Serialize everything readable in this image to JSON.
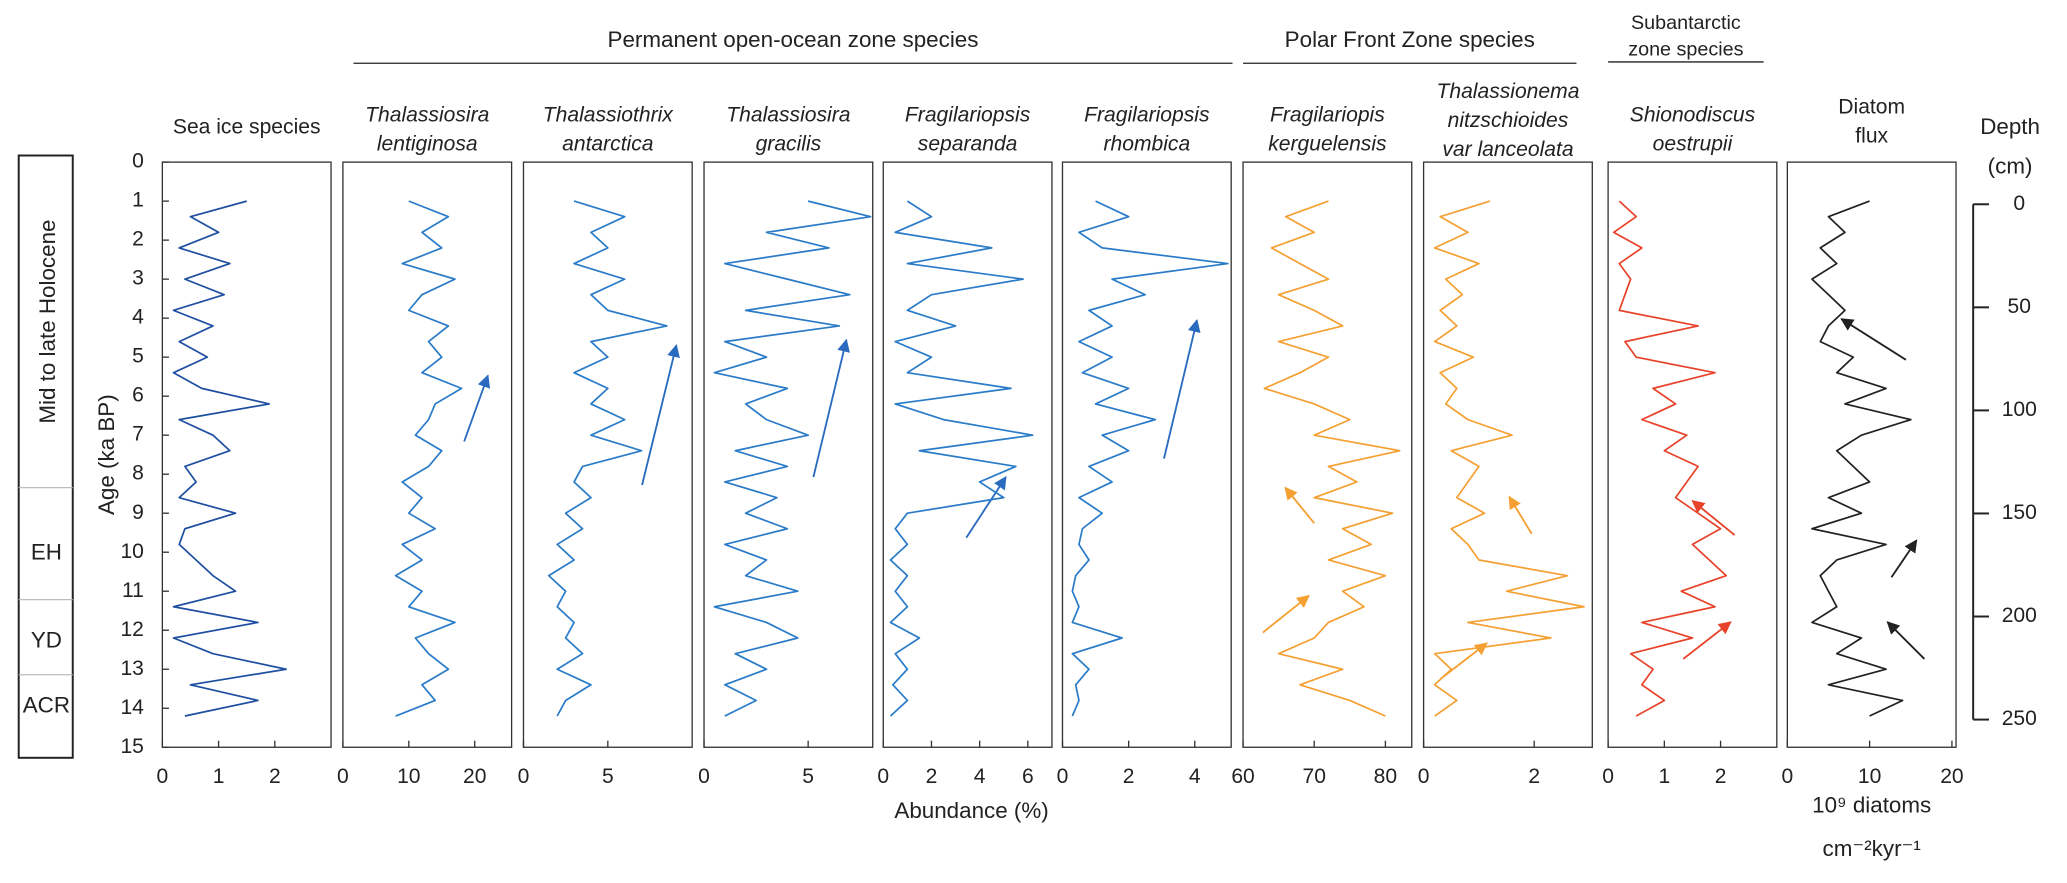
{
  "figure": {
    "groups": [
      [
        "Permanent open-ocean zone species"
      ],
      [
        "Polar Front Zone species"
      ],
      [
        "Subantarctic",
        "zone species"
      ]
    ],
    "x_label": "Abundance (%)",
    "y_label": "Age (ka BP)",
    "periods": [
      "Mid to late Holocene",
      "EH",
      "YD",
      "ACR"
    ],
    "depth_axis": {
      "label": [
        "Depth",
        "(cm)"
      ],
      "lim": [
        0,
        250
      ],
      "ticks": [
        0,
        50,
        100,
        150,
        200,
        250
      ]
    }
  },
  "chart_data": [
    {
      "type": "line",
      "title": [
        "Sea ice species"
      ],
      "italic": false,
      "color": "#1f4fa0",
      "xlim": [
        0,
        3
      ],
      "xticks": [
        0,
        1,
        2
      ],
      "ylim": [
        0,
        15
      ],
      "yticks": [
        0,
        1,
        2,
        3,
        4,
        5,
        6,
        7,
        8,
        9,
        10,
        11,
        12,
        13,
        14,
        15
      ],
      "y": [
        1.0,
        1.4,
        1.8,
        2.2,
        2.6,
        3.0,
        3.4,
        3.8,
        4.2,
        4.6,
        5.0,
        5.4,
        5.8,
        6.2,
        6.6,
        7.0,
        7.4,
        7.8,
        8.2,
        8.6,
        9.0,
        9.4,
        9.8,
        10.2,
        10.6,
        11.0,
        11.4,
        11.8,
        12.2,
        12.6,
        13.0,
        13.4,
        13.8,
        14.2
      ],
      "values": [
        1.5,
        0.5,
        1.0,
        0.3,
        1.2,
        0.4,
        1.1,
        0.2,
        0.9,
        0.3,
        0.8,
        0.2,
        0.7,
        1.9,
        0.3,
        0.9,
        1.2,
        0.4,
        0.6,
        0.3,
        1.3,
        0.4,
        0.3,
        0.6,
        0.9,
        1.3,
        0.2,
        1.7,
        0.2,
        0.9,
        2.2,
        0.5,
        1.7,
        0.4
      ]
    },
    {
      "type": "line",
      "title": [
        "Thalassiosira",
        "lentiginosa"
      ],
      "italic": true,
      "color": "#2a7bc8",
      "xlim": [
        0,
        25.6
      ],
      "xticks": [
        0,
        10,
        20
      ],
      "ylim": [
        0,
        15
      ],
      "y": [
        1.0,
        1.4,
        1.8,
        2.2,
        2.6,
        3.0,
        3.4,
        3.8,
        4.2,
        4.6,
        5.0,
        5.4,
        5.8,
        6.2,
        6.6,
        7.0,
        7.4,
        7.8,
        8.2,
        8.6,
        9.0,
        9.4,
        9.8,
        10.2,
        10.6,
        11.0,
        11.4,
        11.8,
        12.2,
        12.6,
        13.0,
        13.4,
        13.8,
        14.2
      ],
      "values": [
        10,
        16,
        12,
        15,
        9,
        17,
        12,
        10,
        16,
        13,
        15,
        12,
        18,
        14,
        13,
        11,
        15,
        13,
        9,
        12,
        10,
        14,
        9,
        12,
        8,
        12,
        10,
        17,
        11,
        13,
        16,
        12,
        14,
        8
      ]
    },
    {
      "type": "line",
      "title": [
        "Thalassiothrix",
        "antarctica"
      ],
      "italic": true,
      "color": "#2a7bc8",
      "xlim": [
        0,
        10
      ],
      "xticks": [
        0,
        5
      ],
      "ylim": [
        0,
        15
      ],
      "y": [
        1.0,
        1.4,
        1.8,
        2.2,
        2.6,
        3.0,
        3.4,
        3.8,
        4.2,
        4.6,
        5.0,
        5.4,
        5.8,
        6.2,
        6.6,
        7.0,
        7.4,
        7.8,
        8.2,
        8.6,
        9.0,
        9.4,
        9.8,
        10.2,
        10.6,
        11.0,
        11.4,
        11.8,
        12.2,
        12.6,
        13.0,
        13.4,
        13.8,
        14.2
      ],
      "values": [
        3,
        6,
        4,
        5,
        3,
        6,
        4,
        5,
        8.5,
        4,
        5,
        3,
        5,
        4,
        6,
        4,
        7,
        3.5,
        3,
        4,
        2.5,
        3.5,
        2,
        3,
        1.5,
        2.5,
        2,
        3,
        2.5,
        3.5,
        2,
        4,
        2.5,
        2
      ]
    },
    {
      "type": "line",
      "title": [
        "Thalassiosira",
        "gracilis"
      ],
      "italic": true,
      "color": "#2a7bc8",
      "xlim": [
        0,
        8.1
      ],
      "xticks": [
        0,
        5
      ],
      "ylim": [
        0,
        15
      ],
      "y": [
        1.0,
        1.4,
        1.8,
        2.2,
        2.6,
        3.0,
        3.4,
        3.8,
        4.2,
        4.6,
        5.0,
        5.4,
        5.8,
        6.2,
        6.6,
        7.0,
        7.4,
        7.8,
        8.2,
        8.6,
        9.0,
        9.4,
        9.8,
        10.2,
        10.6,
        11.0,
        11.4,
        11.8,
        12.2,
        12.6,
        13.0,
        13.4,
        13.8,
        14.2
      ],
      "values": [
        5,
        8,
        3,
        6,
        1,
        4,
        7,
        2,
        6.5,
        1,
        3,
        0.5,
        4,
        2,
        3,
        5,
        1.5,
        4,
        1,
        3.5,
        2,
        4,
        1,
        3,
        2,
        4.5,
        0.5,
        3,
        4.5,
        1.5,
        3,
        1,
        2.5,
        1
      ]
    },
    {
      "type": "line",
      "title": [
        "Fragilariopsis",
        "separanda"
      ],
      "italic": true,
      "color": "#2a7bc8",
      "xlim": [
        0,
        7
      ],
      "xticks": [
        0,
        2,
        4,
        6
      ],
      "ylim": [
        0,
        15
      ],
      "y": [
        1.0,
        1.4,
        1.8,
        2.2,
        2.6,
        3.0,
        3.4,
        3.8,
        4.2,
        4.6,
        5.0,
        5.4,
        5.8,
        6.2,
        6.6,
        7.0,
        7.4,
        7.8,
        8.2,
        8.6,
        9.0,
        9.4,
        9.8,
        10.2,
        10.6,
        11.0,
        11.4,
        11.8,
        12.2,
        12.6,
        13.0,
        13.4,
        13.8,
        14.2
      ],
      "values": [
        1,
        2,
        0.5,
        4.5,
        1,
        5.8,
        2,
        1,
        3,
        0.5,
        2,
        1,
        5.3,
        0.5,
        2.5,
        6.2,
        1.5,
        5.5,
        4,
        5,
        1,
        0.5,
        1,
        0.3,
        1,
        0.5,
        1,
        0.3,
        1.5,
        0.5,
        1,
        0.4,
        1,
        0.3
      ]
    },
    {
      "type": "line",
      "title": [
        "Fragilariopsis",
        "rhombica"
      ],
      "italic": true,
      "color": "#2a7bc8",
      "xlim": [
        0,
        5.1
      ],
      "xticks": [
        0,
        2,
        4
      ],
      "ylim": [
        0,
        15
      ],
      "y": [
        1.0,
        1.4,
        1.8,
        2.2,
        2.6,
        3.0,
        3.4,
        3.8,
        4.2,
        4.6,
        5.0,
        5.4,
        5.8,
        6.2,
        6.6,
        7.0,
        7.4,
        7.8,
        8.2,
        8.6,
        9.0,
        9.4,
        9.8,
        10.2,
        10.6,
        11.0,
        11.4,
        11.8,
        12.2,
        12.6,
        13.0,
        13.4,
        13.8,
        14.2
      ],
      "values": [
        1,
        2,
        0.5,
        1.2,
        5,
        1.5,
        2.5,
        0.8,
        1.5,
        0.5,
        1.5,
        0.6,
        2,
        1,
        2.8,
        1.2,
        2,
        0.8,
        1.5,
        0.5,
        1.2,
        0.6,
        0.5,
        0.8,
        0.4,
        0.3,
        0.5,
        0.3,
        1.8,
        0.3,
        0.8,
        0.4,
        0.5,
        0.3
      ]
    },
    {
      "type": "line",
      "title": [
        "Fragilariopis",
        "kerguelensis"
      ],
      "italic": true,
      "color": "#f5a033",
      "xlim": [
        60,
        83.7
      ],
      "xticks": [
        60,
        70,
        80
      ],
      "ylim": [
        0,
        15
      ],
      "y": [
        1.0,
        1.4,
        1.8,
        2.2,
        2.6,
        3.0,
        3.4,
        3.8,
        4.2,
        4.6,
        5.0,
        5.4,
        5.8,
        6.2,
        6.6,
        7.0,
        7.4,
        7.8,
        8.2,
        8.6,
        9.0,
        9.4,
        9.8,
        10.2,
        10.6,
        11.0,
        11.4,
        11.8,
        12.2,
        12.6,
        13.0,
        13.4,
        13.8,
        14.2
      ],
      "values": [
        72,
        66,
        70,
        64,
        68,
        72,
        65,
        70,
        74,
        65,
        72,
        68,
        63,
        70,
        75,
        70,
        82,
        72,
        76,
        70,
        81,
        74,
        78,
        72,
        80,
        74,
        77,
        72,
        70,
        65,
        74,
        68,
        75,
        80
      ]
    },
    {
      "type": "line",
      "title": [
        "Thalassionema",
        "nitzschioides",
        "var lanceolata"
      ],
      "italic": true,
      "color": "#f5a033",
      "xlim": [
        0,
        3.05
      ],
      "xticks": [
        0,
        2
      ],
      "ylim": [
        0,
        15
      ],
      "y": [
        1.0,
        1.4,
        1.8,
        2.2,
        2.6,
        3.0,
        3.4,
        3.8,
        4.2,
        4.6,
        5.0,
        5.4,
        5.8,
        6.2,
        6.6,
        7.0,
        7.4,
        7.8,
        8.2,
        8.6,
        9.0,
        9.4,
        9.8,
        10.2,
        10.6,
        11.0,
        11.4,
        11.8,
        12.2,
        12.6,
        13.0,
        13.4,
        13.8,
        14.2
      ],
      "values": [
        1.2,
        0.3,
        0.8,
        0.2,
        1.0,
        0.4,
        0.7,
        0.3,
        0.6,
        0.2,
        0.9,
        0.3,
        0.6,
        0.4,
        0.8,
        1.6,
        0.5,
        1.0,
        0.8,
        0.6,
        1.1,
        0.5,
        0.8,
        1.0,
        2.6,
        1.5,
        2.9,
        0.8,
        2.3,
        0.2,
        0.5,
        0.2,
        0.6,
        0.2
      ]
    },
    {
      "type": "line",
      "title": [
        "Shionodiscus",
        "oestrupii"
      ],
      "italic": true,
      "color": "#e8432a",
      "xlim": [
        0,
        3
      ],
      "xticks": [
        0,
        1,
        2
      ],
      "ylim": [
        0,
        15
      ],
      "y": [
        1.0,
        1.4,
        1.8,
        2.2,
        2.6,
        3.0,
        3.4,
        3.8,
        4.2,
        4.6,
        5.0,
        5.4,
        5.8,
        6.2,
        6.6,
        7.0,
        7.4,
        7.8,
        8.2,
        8.6,
        9.0,
        9.4,
        9.8,
        10.2,
        10.6,
        11.0,
        11.4,
        11.8,
        12.2,
        12.6,
        13.0,
        13.4,
        13.8,
        14.2
      ],
      "values": [
        0.2,
        0.5,
        0.1,
        0.6,
        0.2,
        0.4,
        0.3,
        0.2,
        1.6,
        0.3,
        0.5,
        1.9,
        0.8,
        1.2,
        0.6,
        1.4,
        1.0,
        1.6,
        1.4,
        1.2,
        1.6,
        2.0,
        1.5,
        1.8,
        2.1,
        1.3,
        1.9,
        0.6,
        1.5,
        0.4,
        0.8,
        0.6,
        1.0,
        0.5
      ]
    },
    {
      "type": "line",
      "title": [
        "Diatom",
        "flux"
      ],
      "italic": false,
      "color": "#222222",
      "xlim": [
        0,
        20.5
      ],
      "xticks": [
        0,
        10,
        20
      ],
      "ylim": [
        0,
        15
      ],
      "x_label": [
        "10⁹ diatoms",
        "cm⁻²kyr⁻¹"
      ],
      "y": [
        1.0,
        1.4,
        1.8,
        2.2,
        2.6,
        3.0,
        3.4,
        3.8,
        4.2,
        4.6,
        5.0,
        5.4,
        5.8,
        6.2,
        6.6,
        7.0,
        7.4,
        7.8,
        8.2,
        8.6,
        9.0,
        9.4,
        9.8,
        10.2,
        10.6,
        11.0,
        11.4,
        11.8,
        12.2,
        12.6,
        13.0,
        13.4,
        13.8,
        14.2
      ],
      "values": [
        10,
        5,
        7,
        4,
        6,
        3,
        5,
        7,
        5,
        4,
        8,
        6,
        12,
        7,
        15,
        9,
        6,
        8,
        10,
        5,
        9,
        3,
        12,
        6,
        4,
        5,
        6,
        3,
        9,
        6,
        12,
        5,
        14,
        10
      ]
    }
  ]
}
